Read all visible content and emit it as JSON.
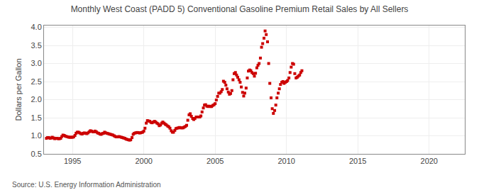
{
  "chart_data": {
    "type": "scatter",
    "title": "Monthly West Coast (PADD 5) Conventional Gasoline Premium Retail Sales by All Sellers",
    "y_label": "Dollars per Gallon",
    "annotations": [
      "Source: U.S. Energy Information Administration"
    ],
    "color": "#cc0000",
    "marker": "square",
    "grid": true,
    "xlim": [
      1993.0,
      2022.5
    ],
    "ylim": [
      0.5,
      4.05
    ],
    "xticks": [
      1995,
      2000,
      2005,
      2010,
      2015,
      2020
    ],
    "yticks": [
      0.5,
      {
        "value": 1.0,
        "label": "1.0"
      },
      1.5,
      {
        "value": 2.0,
        "label": "2.0"
      },
      2.5,
      {
        "value": 3.0,
        "label": "3.0"
      },
      3.5,
      {
        "value": 4.0,
        "label": "4.0"
      }
    ],
    "x": [
      1993.17,
      1993.25,
      1993.33,
      1993.42,
      1993.5,
      1993.58,
      1993.67,
      1993.75,
      1993.83,
      1993.92,
      1994.0,
      1994.08,
      1994.17,
      1994.25,
      1994.33,
      1994.42,
      1994.5,
      1994.58,
      1994.67,
      1994.75,
      1994.83,
      1994.92,
      1995.0,
      1995.08,
      1995.17,
      1995.25,
      1995.33,
      1995.42,
      1995.5,
      1995.58,
      1995.67,
      1995.75,
      1995.83,
      1995.92,
      1996.0,
      1996.08,
      1996.17,
      1996.25,
      1996.33,
      1996.42,
      1996.5,
      1996.58,
      1996.67,
      1996.75,
      1996.83,
      1996.92,
      1997.0,
      1997.08,
      1997.17,
      1997.25,
      1997.33,
      1997.42,
      1997.5,
      1997.58,
      1997.67,
      1997.75,
      1997.83,
      1997.92,
      1998.0,
      1998.08,
      1998.17,
      1998.25,
      1998.33,
      1998.42,
      1998.5,
      1998.58,
      1998.67,
      1998.75,
      1998.83,
      1998.92,
      1999.0,
      1999.08,
      1999.17,
      1999.25,
      1999.33,
      1999.42,
      1999.5,
      1999.58,
      1999.67,
      1999.75,
      1999.83,
      1999.92,
      2000.0,
      2000.08,
      2000.17,
      2000.25,
      2000.33,
      2000.42,
      2000.5,
      2000.58,
      2000.67,
      2000.75,
      2000.83,
      2000.92,
      2001.0,
      2001.08,
      2001.17,
      2001.25,
      2001.33,
      2001.42,
      2001.5,
      2001.58,
      2001.67,
      2001.75,
      2001.83,
      2001.92,
      2002.0,
      2002.08,
      2002.17,
      2002.25,
      2002.33,
      2002.42,
      2002.5,
      2002.58,
      2002.67,
      2002.75,
      2002.83,
      2002.92,
      2003.0,
      2003.08,
      2003.17,
      2003.25,
      2003.33,
      2003.42,
      2003.5,
      2003.58,
      2003.67,
      2003.75,
      2003.83,
      2003.92,
      2004.0,
      2004.08,
      2004.17,
      2004.25,
      2004.33,
      2004.42,
      2004.5,
      2004.58,
      2004.67,
      2004.75,
      2004.83,
      2004.92,
      2005.0,
      2005.08,
      2005.17,
      2005.25,
      2005.33,
      2005.42,
      2005.5,
      2005.58,
      2005.67,
      2005.75,
      2005.83,
      2005.92,
      2006.0,
      2006.08,
      2006.17,
      2006.25,
      2006.33,
      2006.42,
      2006.5,
      2006.58,
      2006.67,
      2006.75,
      2006.83,
      2006.92,
      2007.0,
      2007.08,
      2007.17,
      2007.25,
      2007.33,
      2007.42,
      2007.5,
      2007.58,
      2007.67,
      2007.75,
      2007.83,
      2007.92,
      2008.0,
      2008.08,
      2008.17,
      2008.25,
      2008.33,
      2008.42,
      2008.5,
      2008.58,
      2008.67,
      2008.75,
      2008.83,
      2008.92,
      2009.0,
      2009.08,
      2009.17,
      2009.25,
      2009.33,
      2009.42,
      2009.5,
      2009.58,
      2009.67,
      2009.75,
      2009.83,
      2009.92,
      2010.0,
      2010.08,
      2010.17,
      2010.25,
      2010.33,
      2010.42,
      2010.5,
      2010.58,
      2010.67,
      2010.75,
      2010.83,
      2010.92,
      2011.0,
      2011.08
    ],
    "values": [
      0.93,
      0.95,
      0.95,
      0.93,
      0.94,
      0.96,
      0.94,
      0.92,
      0.93,
      0.93,
      0.92,
      0.92,
      0.93,
      0.98,
      1.02,
      1.01,
      0.99,
      0.98,
      0.97,
      0.96,
      0.96,
      0.96,
      0.96,
      0.97,
      1.01,
      1.07,
      1.1,
      1.1,
      1.08,
      1.06,
      1.05,
      1.07,
      1.08,
      1.07,
      1.06,
      1.08,
      1.11,
      1.14,
      1.13,
      1.11,
      1.11,
      1.13,
      1.11,
      1.08,
      1.07,
      1.05,
      1.04,
      1.06,
      1.07,
      1.1,
      1.08,
      1.07,
      1.06,
      1.05,
      1.04,
      1.03,
      1.02,
      1.0,
      0.98,
      0.97,
      0.97,
      0.98,
      0.97,
      0.96,
      0.95,
      0.94,
      0.93,
      0.91,
      0.9,
      0.89,
      0.88,
      0.89,
      0.95,
      1.04,
      1.07,
      1.08,
      1.09,
      1.09,
      1.08,
      1.08,
      1.09,
      1.1,
      1.13,
      1.21,
      1.35,
      1.42,
      1.41,
      1.4,
      1.37,
      1.36,
      1.38,
      1.4,
      1.38,
      1.35,
      1.33,
      1.28,
      1.3,
      1.35,
      1.38,
      1.35,
      1.32,
      1.3,
      1.27,
      1.25,
      1.21,
      1.14,
      1.1,
      1.1,
      1.15,
      1.2,
      1.21,
      1.22,
      1.23,
      1.22,
      1.22,
      1.22,
      1.24,
      1.26,
      1.29,
      1.43,
      1.58,
      1.61,
      1.54,
      1.48,
      1.45,
      1.48,
      1.52,
      1.52,
      1.52,
      1.52,
      1.55,
      1.66,
      1.77,
      1.85,
      1.86,
      1.82,
      1.81,
      1.82,
      1.81,
      1.81,
      1.84,
      1.86,
      1.89,
      1.99,
      2.09,
      2.18,
      2.18,
      2.22,
      2.28,
      2.51,
      2.48,
      2.4,
      2.3,
      2.21,
      2.15,
      2.17,
      2.25,
      2.55,
      2.72,
      2.75,
      2.68,
      2.62,
      2.55,
      2.48,
      2.35,
      2.2,
      2.1,
      2.18,
      2.32,
      2.6,
      2.79,
      2.82,
      2.8,
      2.75,
      2.72,
      2.65,
      2.73,
      2.88,
      2.95,
      3.0,
      3.15,
      3.45,
      3.55,
      3.7,
      3.9,
      3.8,
      3.6,
      3.0,
      2.45,
      2.05,
      1.75,
      1.62,
      1.7,
      1.85,
      2.05,
      2.18,
      2.3,
      2.42,
      2.48,
      2.5,
      2.45,
      2.48,
      2.5,
      2.53,
      2.6,
      2.75,
      2.9,
      3.0,
      2.98,
      2.72,
      2.6,
      2.62,
      2.65,
      2.68,
      2.75,
      2.8
    ]
  }
}
